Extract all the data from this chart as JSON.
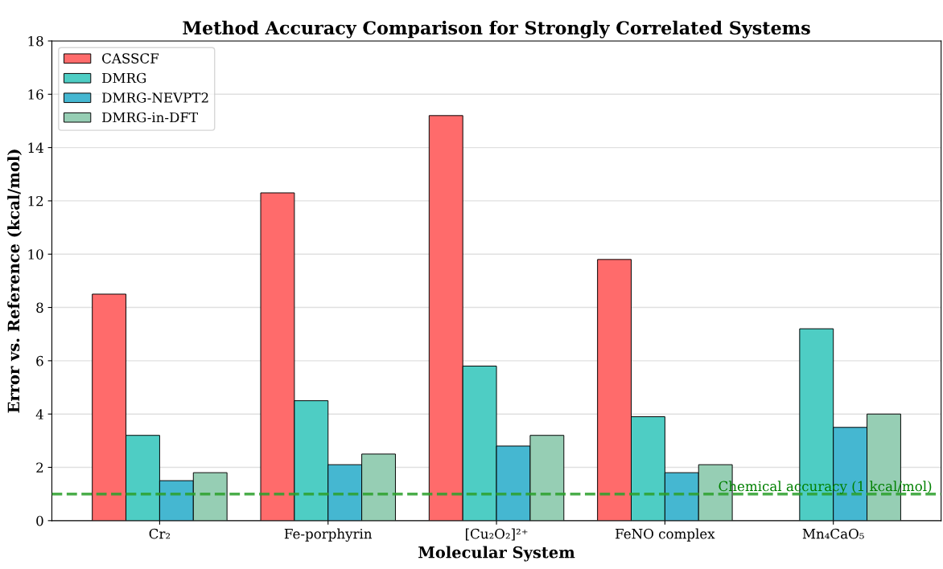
{
  "chart_data": {
    "type": "bar",
    "title": "Method Accuracy Comparison for Strongly Correlated Systems",
    "xlabel": "Molecular System",
    "ylabel": "Error vs. Reference (kcal/mol)",
    "categories": [
      "Cr₂",
      "Fe-porphyrin",
      "[Cu₂O₂]²⁺",
      "FeNO complex",
      "Mn₄CaO₅"
    ],
    "series": [
      {
        "name": "CASSCF",
        "color": "#ff6b6b",
        "values": [
          8.5,
          12.3,
          15.2,
          9.8,
          null
        ]
      },
      {
        "name": "DMRG",
        "color": "#4ecdc4",
        "values": [
          3.2,
          4.5,
          5.8,
          3.9,
          7.2
        ]
      },
      {
        "name": "DMRG-NEVPT2",
        "color": "#45b7d1",
        "values": [
          1.5,
          2.1,
          2.8,
          1.8,
          3.5
        ]
      },
      {
        "name": "DMRG-in-DFT",
        "color": "#96ceb4",
        "values": [
          1.8,
          2.5,
          3.2,
          2.1,
          4.0
        ]
      }
    ],
    "ylim": [
      0,
      18
    ],
    "yticks": [
      0,
      2,
      4,
      6,
      8,
      10,
      12,
      14,
      16,
      18
    ],
    "grid": "y",
    "legend": "top left",
    "ref_lines": [
      {
        "axis": "y",
        "value": 1,
        "label": "Chemical accuracy (1 kcal/mol)",
        "color": "#2ca02c",
        "line_style": "dashed"
      }
    ]
  }
}
